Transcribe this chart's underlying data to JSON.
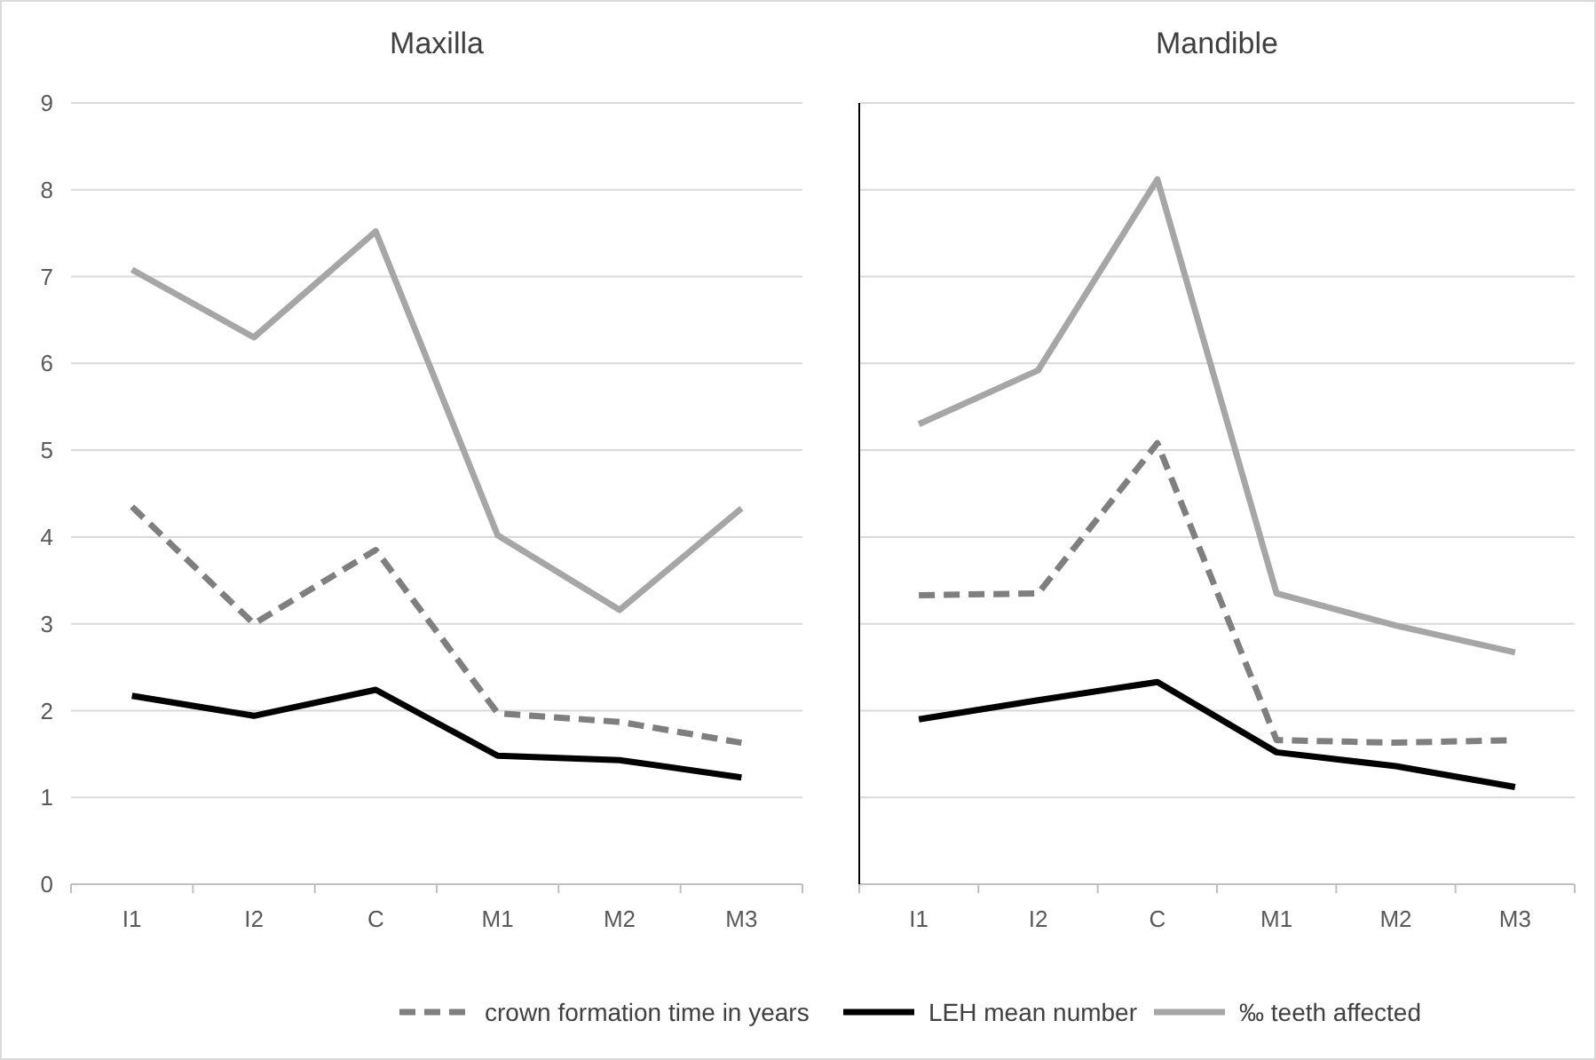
{
  "chart_data": [
    {
      "type": "line",
      "title": "Maxilla",
      "categories": [
        "I1",
        "I2",
        "C",
        "M1",
        "M2",
        "M3"
      ],
      "series": [
        {
          "name": "crown formation time in years",
          "color": "#7f7f7f",
          "line_style": "dashed",
          "values": [
            4.35,
            3.0,
            3.85,
            1.97,
            1.87,
            1.63
          ]
        },
        {
          "name": "LEH mean number",
          "color": "#000000",
          "line_style": "solid",
          "values": [
            2.17,
            1.94,
            2.24,
            1.48,
            1.43,
            1.23
          ]
        },
        {
          "name": "‰ teeth affected",
          "color": "#a6a6a6",
          "line_style": "solid",
          "values": [
            7.08,
            6.3,
            7.52,
            4.02,
            3.16,
            4.33
          ]
        }
      ],
      "ylim": [
        0,
        9
      ],
      "yticks": [
        0,
        1,
        2,
        3,
        4,
        5,
        6,
        7,
        8,
        9
      ],
      "grid": "y",
      "legend": "bottom",
      "marker": "none"
    },
    {
      "type": "line",
      "title": "Mandible",
      "categories": [
        "I1",
        "I2",
        "C",
        "M1",
        "M2",
        "M3"
      ],
      "series": [
        {
          "color": "#7f7f7f",
          "line_style": "dashed",
          "values": [
            3.33,
            3.35,
            5.08,
            1.66,
            1.63,
            1.66
          ]
        },
        {
          "color": "#000000",
          "line_style": "solid",
          "values": [
            1.9,
            2.12,
            2.33,
            1.52,
            1.36,
            1.12
          ]
        },
        {
          "color": "#a6a6a6",
          "line_style": "solid",
          "values": [
            5.3,
            5.92,
            8.12,
            3.35,
            2.98,
            2.67
          ]
        }
      ],
      "ylim": [
        0,
        9
      ],
      "yticks": [
        0,
        1,
        2,
        3,
        4,
        5,
        6,
        7,
        8,
        9
      ],
      "grid": "y",
      "tick_labels": "x",
      "marker": "none"
    }
  ]
}
